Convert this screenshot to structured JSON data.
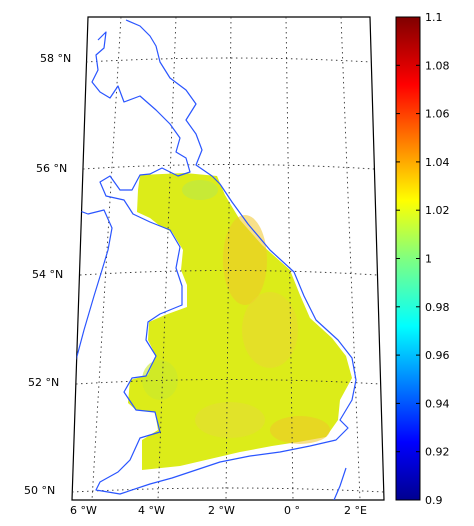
{
  "map": {
    "latitude_labels": [
      "58 °N",
      "56 °N",
      "54 °N",
      "52 °N",
      "50 °N"
    ],
    "longitude_labels": [
      "6 °W",
      "4 °W",
      "2 °W",
      "0 °",
      "2 °E"
    ],
    "coastline_color": "#2a55ff",
    "grid": "dotted"
  },
  "colorbar": {
    "min": 0.9,
    "max": 1.1,
    "colormap": "jet",
    "tick_labels": [
      "1.1",
      "1.08",
      "1.06",
      "1.04",
      "1.02",
      "1",
      "0.98",
      "0.96",
      "0.94",
      "0.92",
      "0.9"
    ]
  },
  "field": {
    "description_value_range": [
      1.0,
      1.04
    ],
    "dominant_color": "#dcec19",
    "hotspot_color": "#f0c62a"
  }
}
